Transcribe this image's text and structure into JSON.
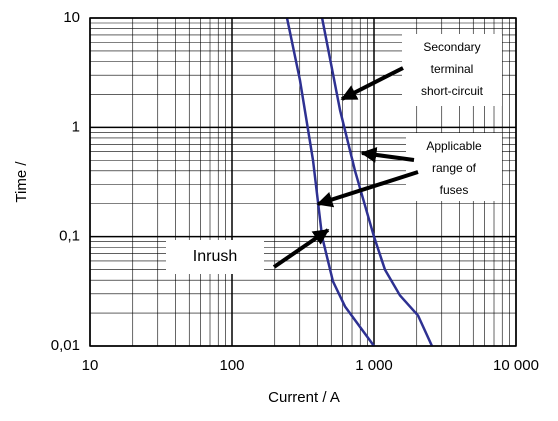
{
  "chart_data": {
    "type": "line",
    "xlabel": "Current / A",
    "ylabel": "Time /",
    "xlog": true,
    "ylog": true,
    "grid": true,
    "minor_grid": true,
    "xlim": [
      10,
      10000
    ],
    "xticks": [
      10,
      100,
      {
        "value": 1000,
        "label": "1 000"
      },
      {
        "value": 10000,
        "label": "10 000"
      }
    ],
    "ylim": [
      0.01,
      10
    ],
    "yticks": [
      {
        "value": 0.01,
        "label": "0,01"
      },
      {
        "value": 0.1,
        "label": "0,1"
      },
      1,
      10
    ],
    "series": [
      {
        "color": "#2e3192",
        "x": [
          244,
          301,
          372,
          431,
          514,
          625,
          1000
        ],
        "values": [
          10,
          2.7,
          0.5,
          0.1,
          0.039,
          0.023,
          0.01
        ]
      },
      {
        "color": "#2e3192",
        "x": [
          431,
          577,
          735,
          1000,
          1194,
          1524,
          2042,
          2560
        ],
        "values": [
          10,
          1.43,
          0.4,
          0.1,
          0.05,
          0.029,
          0.019,
          0.01
        ]
      }
    ],
    "annotations": [
      {
        "lines": [
          "Secondary",
          "terminal",
          "short-circuit"
        ]
      },
      {
        "lines": [
          "Applicable",
          "range of",
          "fuses"
        ]
      },
      {
        "lines": [
          "Inrush"
        ]
      }
    ]
  }
}
